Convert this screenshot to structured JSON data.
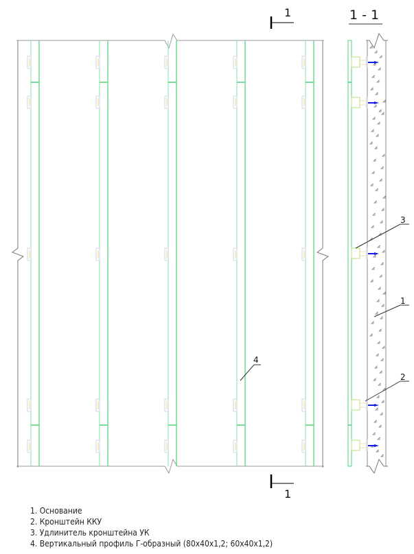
{
  "section": {
    "title": "1 - 1",
    "mark_top": "1",
    "mark_bottom": "1"
  },
  "callouts": [
    "1",
    "2",
    "3",
    "4"
  ],
  "legend": [
    "1. Основание",
    "2. Кронштейн ККУ",
    "3. Удлинитель кронштейна УК",
    "4. Вертикальный профиль Г-образный (80x40x1,2; 60x40x1,2)"
  ],
  "colors": {
    "profile": "#4fd07a",
    "bracket": "#b8e07a",
    "arrow": "#1020e0",
    "line": "#777777"
  }
}
